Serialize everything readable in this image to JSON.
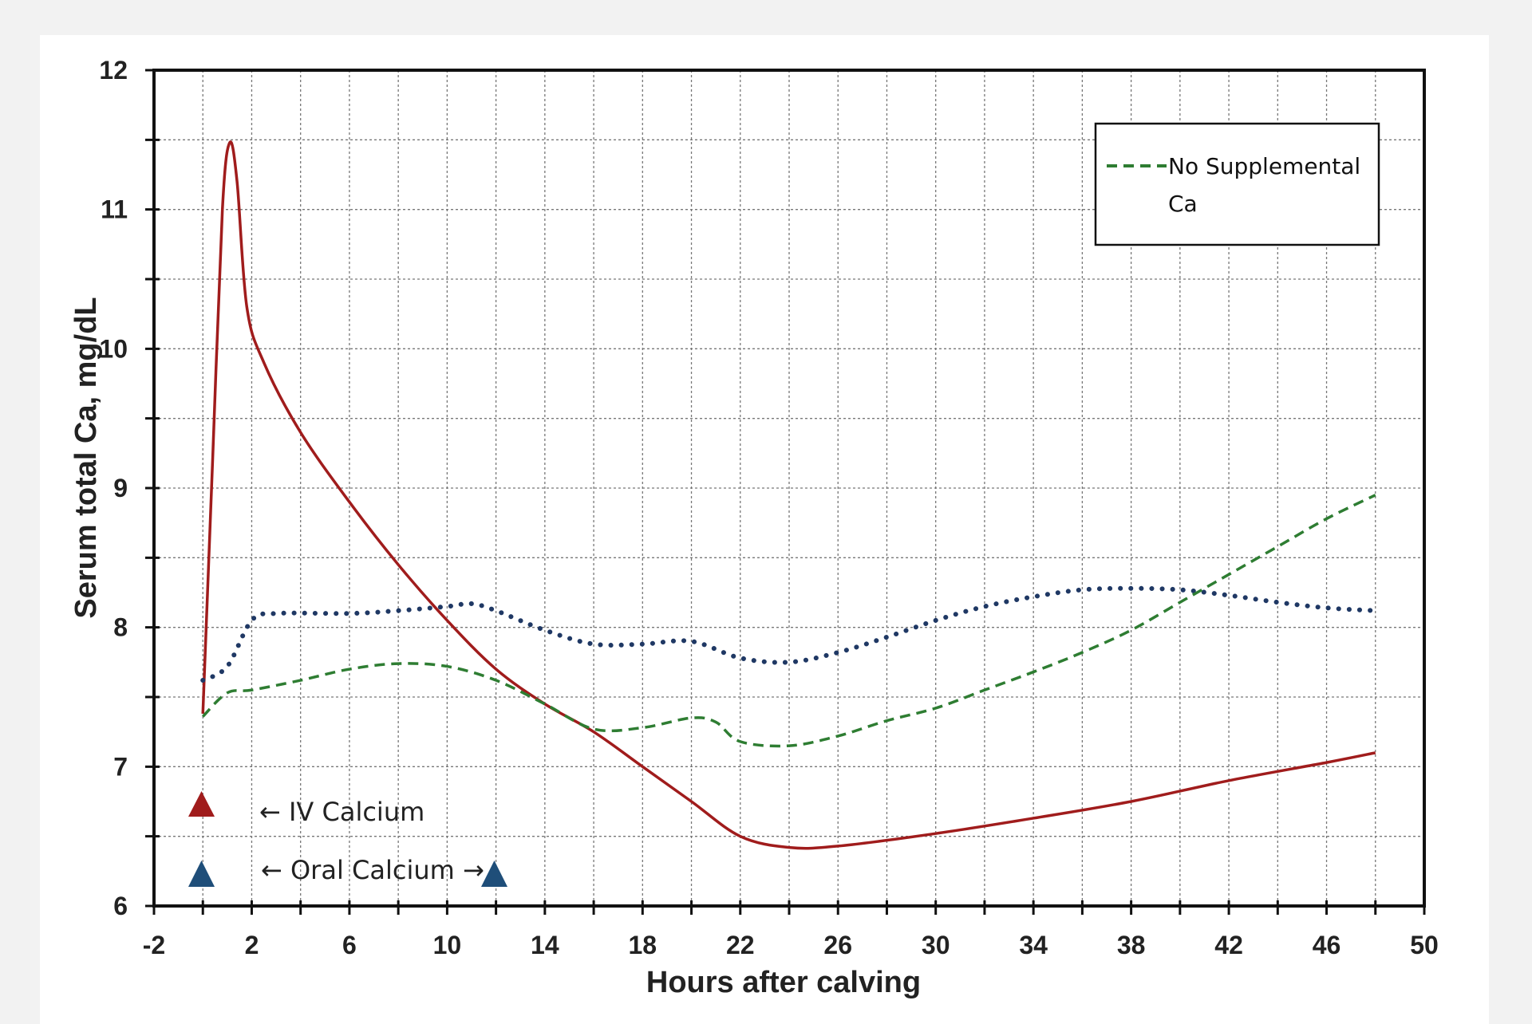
{
  "chart_data": {
    "type": "line",
    "xlabel": "Hours after  calving",
    "ylabel": "Serum total Ca, mg/dL",
    "xlim": [
      -2,
      50
    ],
    "ylim": [
      6,
      12
    ],
    "x_ticks": [
      -2,
      2,
      6,
      10,
      14,
      18,
      22,
      26,
      30,
      34,
      38,
      42,
      46,
      50
    ],
    "x_minor_step": 2,
    "y_ticks": [
      6,
      7,
      8,
      9,
      10,
      11,
      12
    ],
    "y_minor_step": 0.5,
    "grid": true,
    "legend": {
      "position": "top-right",
      "entries": [
        "No Supplemental Ca"
      ]
    },
    "series": [
      {
        "key": "iv",
        "style": "solid",
        "color": "#a01c1c",
        "points": [
          [
            0,
            7.38
          ],
          [
            0.4,
            9.2
          ],
          [
            0.8,
            11.0
          ],
          [
            1.1,
            11.48
          ],
          [
            1.4,
            11.2
          ],
          [
            1.8,
            10.3
          ],
          [
            2.5,
            9.9
          ],
          [
            4,
            9.4
          ],
          [
            6,
            8.9
          ],
          [
            8,
            8.45
          ],
          [
            10,
            8.05
          ],
          [
            12,
            7.7
          ],
          [
            14,
            7.45
          ],
          [
            16,
            7.25
          ],
          [
            18,
            7.0
          ],
          [
            20,
            6.75
          ],
          [
            22,
            6.5
          ],
          [
            24,
            6.42
          ],
          [
            26,
            6.43
          ],
          [
            30,
            6.52
          ],
          [
            34,
            6.63
          ],
          [
            38,
            6.75
          ],
          [
            42,
            6.9
          ],
          [
            46,
            7.03
          ],
          [
            48,
            7.1
          ]
        ]
      },
      {
        "key": "oral",
        "style": "dotted",
        "color": "#1f3864",
        "points": [
          [
            0,
            7.62
          ],
          [
            1,
            7.72
          ],
          [
            2,
            8.05
          ],
          [
            3,
            8.1
          ],
          [
            6,
            8.1
          ],
          [
            8,
            8.12
          ],
          [
            10,
            8.15
          ],
          [
            11,
            8.17
          ],
          [
            12,
            8.12
          ],
          [
            14,
            7.98
          ],
          [
            16,
            7.88
          ],
          [
            18,
            7.88
          ],
          [
            20,
            7.9
          ],
          [
            22,
            7.78
          ],
          [
            24,
            7.75
          ],
          [
            26,
            7.82
          ],
          [
            28,
            7.93
          ],
          [
            30,
            8.05
          ],
          [
            32,
            8.15
          ],
          [
            34,
            8.22
          ],
          [
            36,
            8.27
          ],
          [
            38,
            8.28
          ],
          [
            40,
            8.27
          ],
          [
            42,
            8.23
          ],
          [
            44,
            8.18
          ],
          [
            46,
            8.14
          ],
          [
            48,
            8.12
          ]
        ]
      },
      {
        "key": "none",
        "name": "No Supplemental Ca",
        "style": "dashed",
        "color": "#2e7d32",
        "points": [
          [
            0,
            7.36
          ],
          [
            1,
            7.53
          ],
          [
            2,
            7.55
          ],
          [
            4,
            7.62
          ],
          [
            6,
            7.7
          ],
          [
            8,
            7.74
          ],
          [
            10,
            7.72
          ],
          [
            12,
            7.62
          ],
          [
            14,
            7.45
          ],
          [
            16,
            7.27
          ],
          [
            18,
            7.28
          ],
          [
            20,
            7.35
          ],
          [
            21,
            7.32
          ],
          [
            22,
            7.18
          ],
          [
            24,
            7.15
          ],
          [
            26,
            7.22
          ],
          [
            28,
            7.33
          ],
          [
            30,
            7.42
          ],
          [
            32,
            7.55
          ],
          [
            34,
            7.68
          ],
          [
            36,
            7.82
          ],
          [
            38,
            7.98
          ],
          [
            40,
            8.18
          ],
          [
            42,
            8.38
          ],
          [
            44,
            8.58
          ],
          [
            46,
            8.78
          ],
          [
            48,
            8.95
          ]
        ]
      }
    ],
    "annotations": [
      {
        "text": "← IV Calcium",
        "marker_color": "#a01c1c"
      },
      {
        "text": "← Oral Calcium →",
        "marker_color": "#1f4e79"
      }
    ]
  }
}
